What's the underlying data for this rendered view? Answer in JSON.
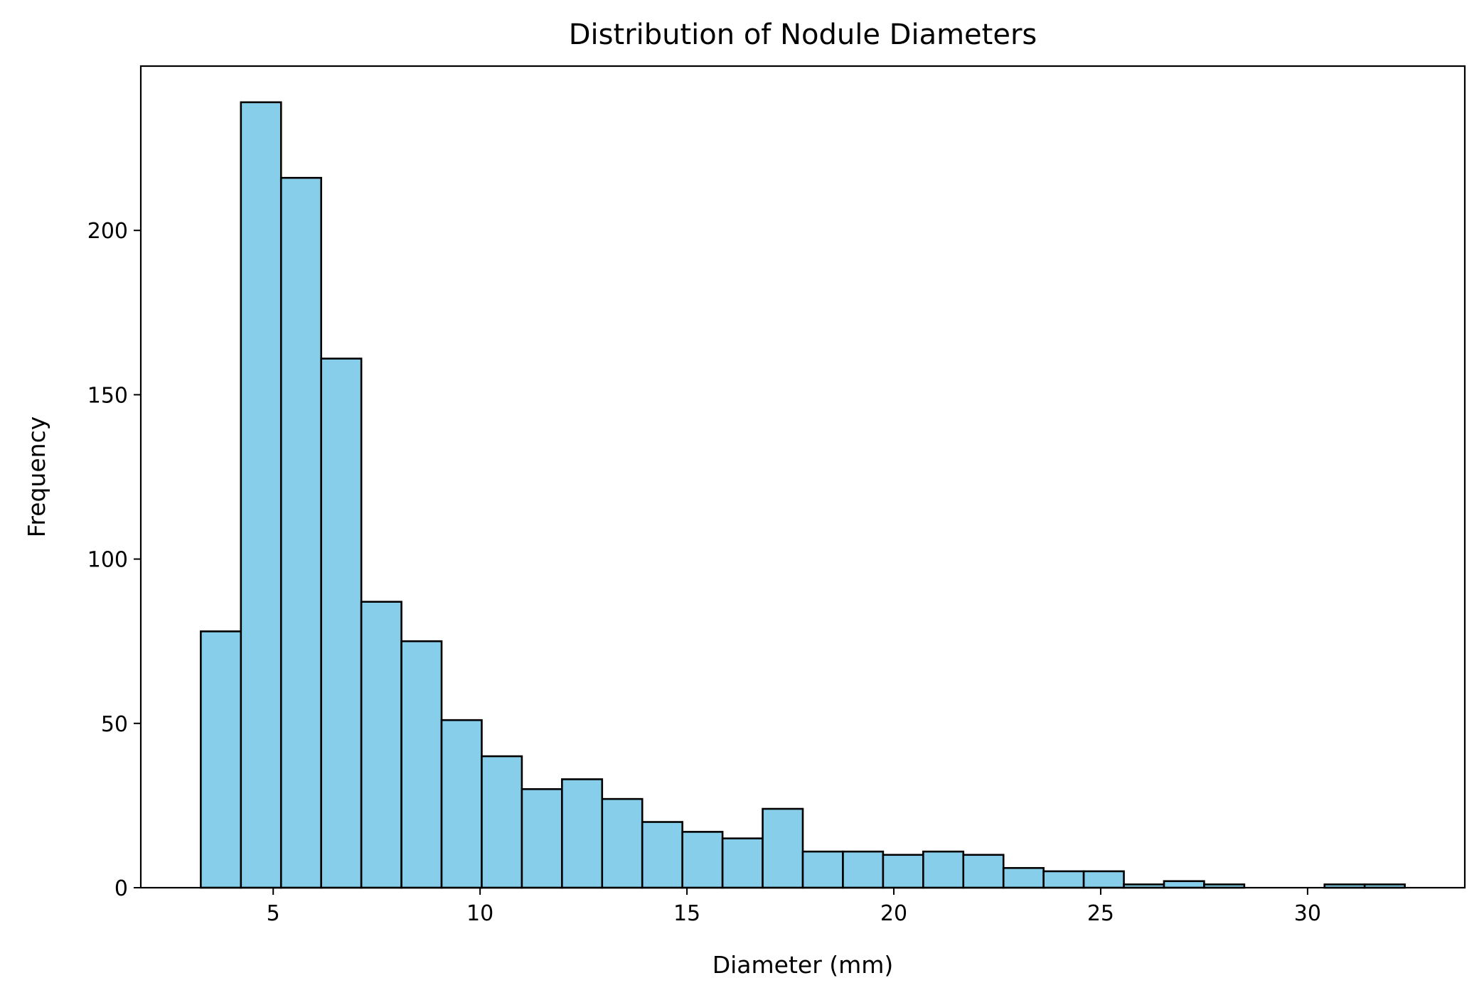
{
  "chart_data": {
    "type": "bar",
    "subtype": "histogram",
    "title": "Distribution of Nodule Diameters",
    "xlabel": "Diameter (mm)",
    "ylabel": "Frequency",
    "xlim": [
      1.8,
      33.8
    ],
    "ylim": [
      0,
      250
    ],
    "x_ticks": [
      5,
      10,
      15,
      20,
      25,
      30
    ],
    "y_ticks": [
      0,
      50,
      100,
      150,
      200
    ],
    "bin_edges": [
      3.25,
      4.22,
      5.19,
      6.16,
      7.13,
      8.1,
      9.07,
      10.04,
      11.01,
      11.98,
      12.95,
      13.92,
      14.89,
      15.86,
      16.83,
      17.8,
      18.77,
      19.74,
      20.71,
      21.68,
      22.65,
      23.62,
      24.59,
      25.56,
      26.53,
      27.5,
      28.47,
      29.44,
      30.41,
      31.38,
      32.35
    ],
    "values": [
      78,
      239,
      216,
      161,
      87,
      75,
      51,
      40,
      30,
      33,
      27,
      20,
      17,
      15,
      24,
      11,
      11,
      10,
      11,
      10,
      6,
      5,
      5,
      1,
      2,
      1,
      0,
      0,
      1,
      1
    ],
    "bar_color": "#87CEEB",
    "edge_color": "#000000",
    "grid": false,
    "legend": "none"
  }
}
